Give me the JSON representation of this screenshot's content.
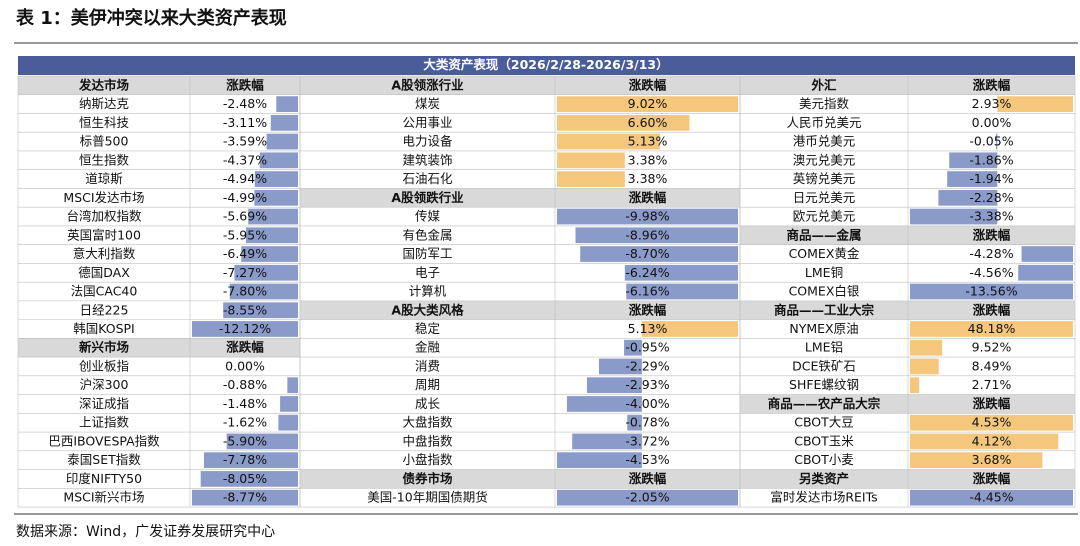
{
  "title": "表 1：美伊冲突以来大类资产表现",
  "source": "数据来源：Wind，广发证券发展研究中心",
  "table": {
    "banner": "大类资产表现（2026/2/28-2026/3/13）",
    "groups": [
      {
        "sections": [
          {
            "header": [
              "发达市场",
              "涨跌幅"
            ],
            "rows": [
              {
                "name": "纳斯达克",
                "change": {
                  "value": -2.48,
                  "label": "-2.48%"
                }
              },
              {
                "name": "恒生科技",
                "change": {
                  "value": -3.11,
                  "label": "-3.11%"
                }
              },
              {
                "name": "标普500",
                "change": {
                  "value": -3.59,
                  "label": "-3.59%"
                }
              },
              {
                "name": "恒生指数",
                "change": {
                  "value": -4.37,
                  "label": "-4.37%"
                }
              },
              {
                "name": "道琼斯",
                "change": {
                  "value": -4.94,
                  "label": "-4.94%"
                }
              },
              {
                "name": "MSCI发达市场",
                "change": {
                  "value": -4.99,
                  "label": "-4.99%"
                }
              },
              {
                "name": "台湾加权指数",
                "change": {
                  "value": -5.69,
                  "label": "-5.69%"
                }
              },
              {
                "name": "英国富时100",
                "change": {
                  "value": -5.95,
                  "label": "-5.95%"
                }
              },
              {
                "name": "意大利指数",
                "change": {
                  "value": -6.49,
                  "label": "-6.49%"
                }
              },
              {
                "name": "德国DAX",
                "change": {
                  "value": -7.27,
                  "label": "-7.27%"
                }
              },
              {
                "name": "法国CAC40",
                "change": {
                  "value": -7.8,
                  "label": "-7.80%"
                }
              },
              {
                "name": "日经225",
                "change": {
                  "value": -8.55,
                  "label": "-8.55%"
                }
              },
              {
                "name": "韩国KOSPI",
                "change": {
                  "value": -12.12,
                  "label": "-12.12%"
                }
              }
            ]
          },
          {
            "header": [
              "新兴市场",
              "涨跌幅"
            ],
            "rows": [
              {
                "name": "创业板指",
                "change": {
                  "value": 0,
                  "label": "0.00%"
                }
              },
              {
                "name": "沪深300",
                "change": {
                  "value": -0.88,
                  "label": "-0.88%"
                }
              },
              {
                "name": "深证成指",
                "change": {
                  "value": -1.48,
                  "label": "-1.48%"
                }
              },
              {
                "name": "上证指数",
                "change": {
                  "value": -1.62,
                  "label": "-1.62%"
                }
              },
              {
                "name": "巴西IBOVESPA指数",
                "change": {
                  "value": -5.9,
                  "label": "-5.90%"
                }
              },
              {
                "name": "泰国SET指数",
                "change": {
                  "value": -7.78,
                  "label": "-7.78%"
                }
              },
              {
                "name": "印度NIFTY50",
                "change": {
                  "value": -8.05,
                  "label": "-8.05%"
                }
              },
              {
                "name": "MSCI新兴市场",
                "change": {
                  "value": -8.77,
                  "label": "-8.77%"
                }
              }
            ]
          }
        ]
      },
      {
        "sections": [
          {
            "header": [
              "A股领涨行业",
              "涨跌幅"
            ],
            "rows": [
              {
                "name": "煤炭",
                "change": {
                  "value": 9.02,
                  "label": "9.02%"
                }
              },
              {
                "name": "公用事业",
                "change": {
                  "value": 6.6,
                  "label": "6.60%"
                }
              },
              {
                "name": "电力设备",
                "change": {
                  "value": 5.13,
                  "label": "5.13%"
                }
              },
              {
                "name": "建筑装饰",
                "change": {
                  "value": 3.38,
                  "label": "3.38%"
                }
              },
              {
                "name": "石油石化",
                "change": {
                  "value": 3.38,
                  "label": "3.38%"
                }
              }
            ]
          },
          {
            "header": [
              "A股领跌行业",
              "涨跌幅"
            ],
            "rows": [
              {
                "name": "传媒",
                "change": {
                  "value": -9.98,
                  "label": "-9.98%"
                }
              },
              {
                "name": "有色金属",
                "change": {
                  "value": -8.96,
                  "label": "-8.96%"
                }
              },
              {
                "name": "国防军工",
                "change": {
                  "value": -8.7,
                  "label": "-8.70%"
                }
              },
              {
                "name": "电子",
                "change": {
                  "value": -6.24,
                  "label": "-6.24%"
                }
              },
              {
                "name": "计算机",
                "change": {
                  "value": -6.16,
                  "label": "-6.16%"
                }
              }
            ]
          },
          {
            "header": [
              "A股大类风格",
              "涨跌幅"
            ],
            "rows": [
              {
                "name": "稳定",
                "change": {
                  "value": 5.13,
                  "label": "5.13%"
                }
              },
              {
                "name": "金融",
                "change": {
                  "value": -0.95,
                  "label": "-0.95%"
                }
              },
              {
                "name": "消费",
                "change": {
                  "value": -2.29,
                  "label": "-2.29%"
                }
              },
              {
                "name": "周期",
                "change": {
                  "value": -2.93,
                  "label": "-2.93%"
                }
              },
              {
                "name": "成长",
                "change": {
                  "value": -4,
                  "label": "-4.00%"
                }
              },
              {
                "name": "大盘指数",
                "change": {
                  "value": -0.78,
                  "label": "-0.78%"
                }
              },
              {
                "name": "中盘指数",
                "change": {
                  "value": -3.72,
                  "label": "-3.72%"
                }
              },
              {
                "name": "小盘指数",
                "change": {
                  "value": -4.53,
                  "label": "-4.53%"
                }
              }
            ]
          },
          {
            "header": [
              "债券市场",
              "涨跌幅"
            ],
            "rows": [
              {
                "name": "美国-10年期国债期货",
                "change": {
                  "value": -2.05,
                  "label": "-2.05%"
                }
              }
            ]
          }
        ]
      },
      {
        "sections": [
          {
            "header": [
              "外汇",
              "涨跌幅"
            ],
            "rows": [
              {
                "name": "美元指数",
                "change": {
                  "value": 2.93,
                  "label": "2.93%"
                }
              },
              {
                "name": "人民币兑美元",
                "change": {
                  "value": 0,
                  "label": "0.00%"
                }
              },
              {
                "name": "港币兑美元",
                "change": {
                  "value": -0.05,
                  "label": "-0.05%"
                }
              },
              {
                "name": "澳元兑美元",
                "change": {
                  "value": -1.86,
                  "label": "-1.86%"
                }
              },
              {
                "name": "英镑兑美元",
                "change": {
                  "value": -1.94,
                  "label": "-1.94%"
                }
              },
              {
                "name": "日元兑美元",
                "change": {
                  "value": -2.28,
                  "label": "-2.28%"
                }
              },
              {
                "name": "欧元兑美元",
                "change": {
                  "value": -3.38,
                  "label": "-3.38%"
                }
              }
            ]
          },
          {
            "header": [
              "商品——金属",
              "涨跌幅"
            ],
            "rows": [
              {
                "name": "COMEX黄金",
                "change": {
                  "value": -4.28,
                  "label": "-4.28%"
                }
              },
              {
                "name": "LME铜",
                "change": {
                  "value": -4.56,
                  "label": "-4.56%"
                }
              },
              {
                "name": "COMEX白银",
                "change": {
                  "value": -13.56,
                  "label": "-13.56%"
                }
              }
            ]
          },
          {
            "header": [
              "商品——工业大宗",
              "涨跌幅"
            ],
            "rows": [
              {
                "name": "NYMEX原油",
                "change": {
                  "value": 48.18,
                  "label": "48.18%"
                }
              },
              {
                "name": "LME铝",
                "change": {
                  "value": 9.52,
                  "label": "9.52%"
                }
              },
              {
                "name": "DCE铁矿石",
                "change": {
                  "value": 8.49,
                  "label": "8.49%"
                }
              },
              {
                "name": "SHFE螺纹钢",
                "change": {
                  "value": 2.71,
                  "label": "2.71%"
                }
              }
            ]
          },
          {
            "header": [
              "商品——农产品大宗",
              "涨跌幅"
            ],
            "rows": [
              {
                "name": "CBOT大豆",
                "change": {
                  "value": 4.53,
                  "label": "4.53%"
                }
              },
              {
                "name": "CBOT玉米",
                "change": {
                  "value": 4.12,
                  "label": "4.12%"
                }
              },
              {
                "name": "CBOT小麦",
                "change": {
                  "value": 3.68,
                  "label": "3.68%"
                }
              }
            ]
          },
          {
            "header": [
              "另类资产",
              "涨跌幅"
            ],
            "rows": [
              {
                "name": "富时发达市场REITs",
                "change": {
                  "value": -4.45,
                  "label": "-4.45%"
                }
              }
            ]
          }
        ]
      }
    ]
  }
}
